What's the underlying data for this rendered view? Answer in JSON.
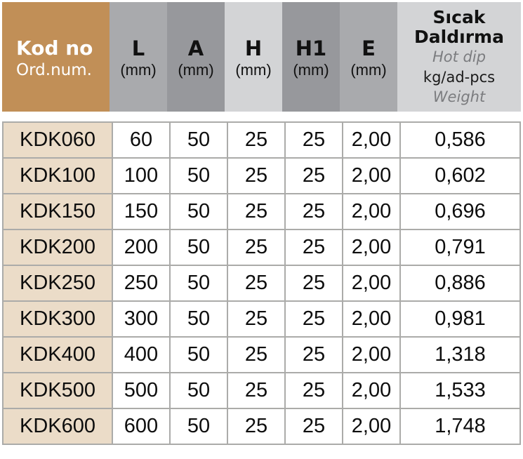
{
  "colors": {
    "kod_header_bg": "#C18F57",
    "kod_cell_bg": "#EBDCC8",
    "header_gray_medium": "#A9AAAD",
    "header_gray_dark": "#97989C",
    "header_gray_light": "#D3D4D6",
    "cell_border": "#ABABA9"
  },
  "header": {
    "kod": {
      "title": "Kod no",
      "subtitle": "Ord.num."
    },
    "columns": [
      {
        "label": "L",
        "unit": "(mm)"
      },
      {
        "label": "A",
        "unit": "(mm)"
      },
      {
        "label": "H",
        "unit": "(mm)"
      },
      {
        "label": "H1",
        "unit": "(mm)"
      },
      {
        "label": "E",
        "unit": "(mm)"
      }
    ],
    "weight": {
      "title1": "Sıcak",
      "title2": "Daldırma",
      "hot_dip": "Hot dip",
      "unit": "kg/ad-pcs",
      "weight_label": "Weight"
    }
  },
  "table": {
    "rows": [
      {
        "kod": "KDK060",
        "l": "60",
        "a": "50",
        "h": "25",
        "h1": "25",
        "e": "2,00",
        "weight": "0,586"
      },
      {
        "kod": "KDK100",
        "l": "100",
        "a": "50",
        "h": "25",
        "h1": "25",
        "e": "2,00",
        "weight": "0,602"
      },
      {
        "kod": "KDK150",
        "l": "150",
        "a": "50",
        "h": "25",
        "h1": "25",
        "e": "2,00",
        "weight": "0,696"
      },
      {
        "kod": "KDK200",
        "l": "200",
        "a": "50",
        "h": "25",
        "h1": "25",
        "e": "2,00",
        "weight": "0,791"
      },
      {
        "kod": "KDK250",
        "l": "250",
        "a": "50",
        "h": "25",
        "h1": "25",
        "e": "2,00",
        "weight": "0,886"
      },
      {
        "kod": "KDK300",
        "l": "300",
        "a": "50",
        "h": "25",
        "h1": "25",
        "e": "2,00",
        "weight": "0,981"
      },
      {
        "kod": "KDK400",
        "l": "400",
        "a": "50",
        "h": "25",
        "h1": "25",
        "e": "2,00",
        "weight": "1,318"
      },
      {
        "kod": "KDK500",
        "l": "500",
        "a": "50",
        "h": "25",
        "h1": "25",
        "e": "2,00",
        "weight": "1,533"
      },
      {
        "kod": "KDK600",
        "l": "600",
        "a": "50",
        "h": "25",
        "h1": "25",
        "e": "2,00",
        "weight": "1,748"
      }
    ]
  }
}
